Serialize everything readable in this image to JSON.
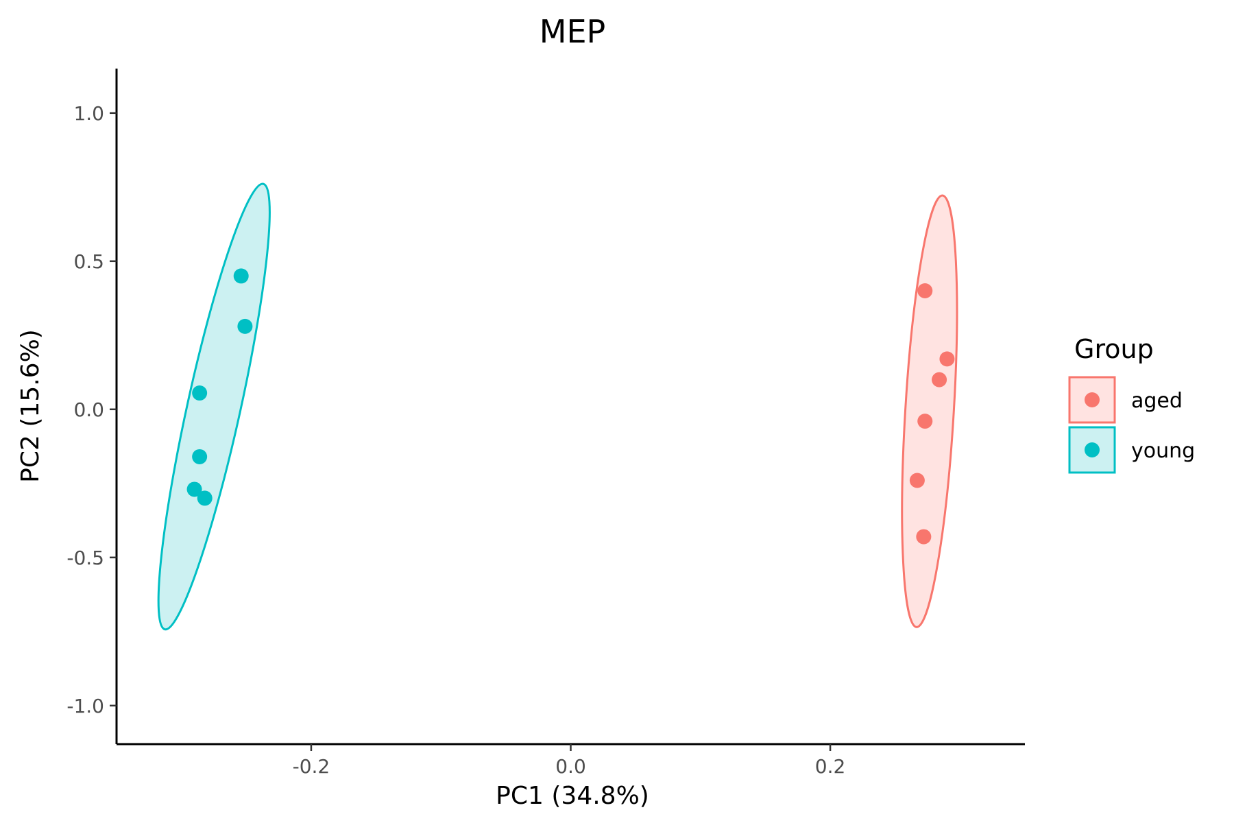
{
  "chart_data": {
    "type": "scatter",
    "title": "MEP",
    "xlabel": "PC1 (34.8%)",
    "ylabel": "PC2 (15.6%)",
    "xlim": [
      -0.35,
      0.35
    ],
    "ylim": [
      -1.13,
      1.15
    ],
    "x_ticks": [
      -0.2,
      0.0,
      0.2
    ],
    "x_tick_labels": [
      "-0.2",
      "0.0",
      "0.2"
    ],
    "y_ticks": [
      -1.0,
      -0.5,
      0.0,
      0.5,
      1.0
    ],
    "y_tick_labels": [
      "-1.0",
      "-0.5",
      "0.0",
      "0.5",
      "1.0"
    ],
    "grid": false,
    "legend": {
      "title": "Group",
      "placement": "right"
    },
    "series": [
      {
        "name": "aged",
        "color": "#F8766D",
        "fill": "#FFE3E1",
        "x": [
          0.273,
          0.29,
          0.284,
          0.273,
          0.267,
          0.272
        ],
        "y": [
          0.4,
          0.17,
          0.1,
          -0.04,
          -0.24,
          -0.43
        ]
      },
      {
        "name": "young",
        "color": "#00BFC4",
        "fill": "#CCF1F2",
        "x": [
          -0.254,
          -0.251,
          -0.286,
          -0.286,
          -0.29,
          -0.282
        ],
        "y": [
          0.45,
          0.28,
          0.055,
          -0.16,
          -0.27,
          -0.3
        ]
      }
    ]
  }
}
